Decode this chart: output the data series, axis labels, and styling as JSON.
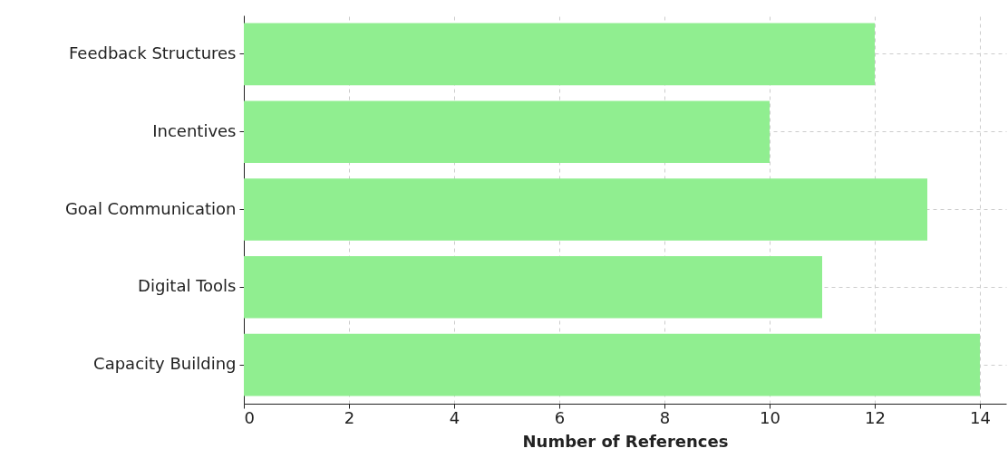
{
  "chart_data": {
    "type": "bar",
    "orientation": "horizontal",
    "xlabel": "Number of References",
    "categories": [
      "Feedback Structures",
      "Incentives",
      "Goal Communication",
      "Digital Tools",
      "Capacity Building"
    ],
    "values": [
      12,
      10,
      13,
      11,
      14
    ],
    "color": "#90ee90",
    "xlim": [
      0,
      14.5
    ],
    "xticks": [
      0,
      2,
      4,
      6,
      8,
      10,
      12,
      14
    ],
    "grid": true
  }
}
